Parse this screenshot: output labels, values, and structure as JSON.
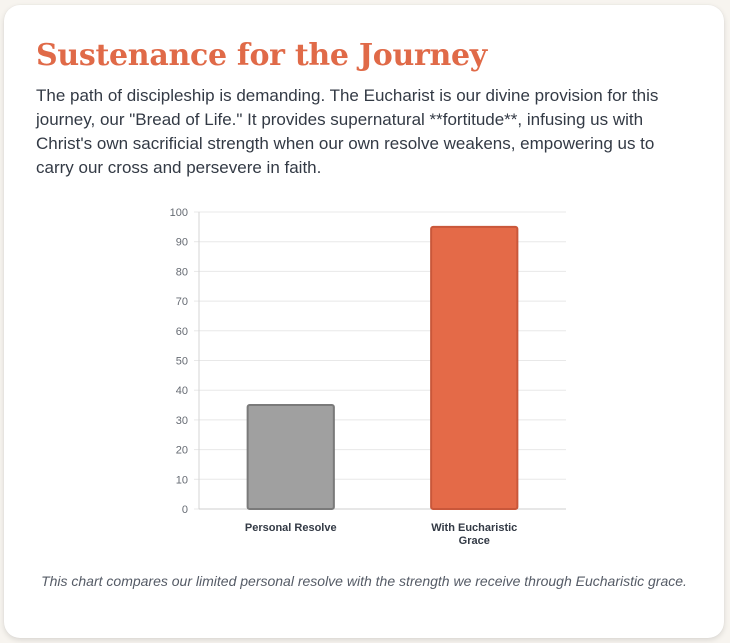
{
  "card": {
    "title": "Sustenance for the Journey",
    "description": "The path of discipleship is demanding. The Eucharist is our divine provision for this journey, our \"Bread of Life.\" It provides supernatural **fortitude**, infusing us with Christ's own sacrificial strength when our own resolve weakens, empowering us to carry our cross and persevere in faith.",
    "caption": "This chart compares our limited personal resolve with the strength we receive through Eucharistic grace."
  },
  "colors": {
    "title": "#e06a48",
    "bar_personal": "#a0a0a0",
    "bar_personal_border": "#7a7a7a",
    "bar_grace": "#e46a48",
    "bar_grace_border": "#c9573a",
    "grid": "#e8e8e8"
  },
  "chart_data": {
    "type": "bar",
    "title": "",
    "xlabel": "",
    "ylabel": "",
    "categories": [
      [
        "Personal Resolve"
      ],
      [
        "With Eucharistic",
        "Grace"
      ]
    ],
    "values": [
      35,
      95
    ],
    "ylim": [
      0,
      100
    ],
    "yticks": [
      "0",
      "10",
      "20",
      "30",
      "40",
      "50",
      "60",
      "70",
      "80",
      "90",
      "100"
    ],
    "grid": true,
    "legend": "none"
  }
}
